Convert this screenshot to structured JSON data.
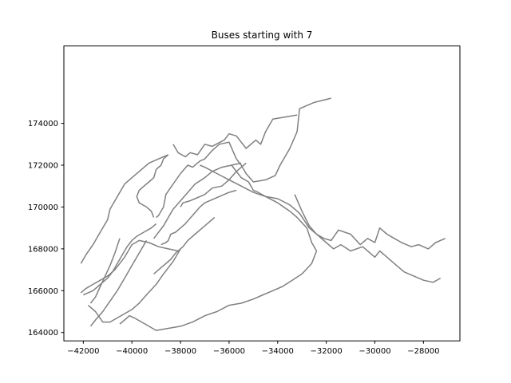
{
  "chart_data": {
    "type": "line",
    "title": "Buses starting with 7",
    "xlabel": "",
    "ylabel": "",
    "xlim": [
      -42800,
      -26500
    ],
    "ylim": [
      163600,
      177700
    ],
    "x_ticks": [
      -42000,
      -40000,
      -38000,
      -36000,
      -34000,
      -32000,
      -30000,
      -28000
    ],
    "y_ticks": [
      164000,
      166000,
      168000,
      170000,
      172000,
      174000
    ],
    "x_tick_labels": [
      "−42000",
      "−40000",
      "−38000",
      "−36000",
      "−34000",
      "−32000",
      "−30000",
      "−28000"
    ],
    "y_tick_labels": [
      "164000",
      "166000",
      "168000",
      "170000",
      "172000",
      "174000"
    ],
    "grid": false,
    "line_color": "#808080",
    "series": [
      {
        "x": [
          -31800,
          -32500,
          -33100,
          -33200,
          -33500,
          -33900,
          -34100,
          -34500,
          -35000,
          -35300,
          -35500,
          -35700,
          -36000,
          -36400,
          -36700,
          -37000,
          -37200,
          -37500,
          -37700,
          -38000,
          -38300,
          -38600,
          -38700,
          -38900,
          -39000
        ],
        "y": [
          175200,
          175000,
          174700,
          173600,
          172800,
          172000,
          171500,
          171300,
          171200,
          171600,
          172000,
          172300,
          173100,
          173000,
          172700,
          172300,
          172200,
          171900,
          172000,
          171600,
          171100,
          170600,
          170000,
          169600,
          169500
        ]
      },
      {
        "x": [
          -33200,
          -34200,
          -34500,
          -34700,
          -34900,
          -35300,
          -35700,
          -36000,
          -36200,
          -36700,
          -37000,
          -37300,
          -37600,
          -37800,
          -38100,
          -38300
        ],
        "y": [
          174400,
          174200,
          173600,
          173000,
          173200,
          172800,
          173400,
          173500,
          173200,
          172900,
          173000,
          172500,
          172600,
          172400,
          172600,
          173000
        ]
      },
      {
        "x": [
          -35300,
          -35700,
          -36000,
          -36300,
          -36700,
          -37000,
          -37400,
          -37600,
          -37900,
          -38000
        ],
        "y": [
          172100,
          171700,
          171300,
          171000,
          170900,
          170600,
          170400,
          170300,
          170200,
          170000
        ]
      },
      {
        "x": [
          -35700,
          -36000,
          -36400,
          -36800,
          -37000,
          -37200,
          -37500,
          -37800,
          -38000,
          -38200,
          -38400,
          -38500,
          -38600,
          -38800
        ],
        "y": [
          170800,
          170700,
          170500,
          170300,
          170200,
          170000,
          169600,
          169200,
          169000,
          168800,
          168700,
          168400,
          168300,
          168200
        ]
      },
      {
        "x": [
          -35500,
          -35900,
          -36300,
          -36700,
          -37000,
          -37400,
          -37700,
          -38000,
          -38300,
          -38500,
          -38700,
          -38900,
          -39100
        ],
        "y": [
          172100,
          172000,
          171900,
          171700,
          171400,
          171100,
          170700,
          170300,
          169900,
          169500,
          169100,
          168800,
          168500
        ]
      },
      {
        "x": [
          -35900,
          -35500,
          -35200,
          -35000,
          -34800,
          -34500,
          -34000,
          -33500,
          -33100,
          -32700,
          -32300,
          -32000,
          -31700,
          -31400,
          -31000,
          -30500,
          -30200,
          -30000,
          -29800,
          -29600,
          -29200,
          -28800,
          -28400,
          -28000,
          -27600,
          -27300
        ],
        "y": [
          172000,
          171400,
          171200,
          170800,
          170700,
          170500,
          170400,
          170100,
          169700,
          169000,
          168600,
          168300,
          168000,
          168200,
          167900,
          168100,
          167800,
          167600,
          167900,
          167700,
          167300,
          166900,
          166700,
          166500,
          166400,
          166600
        ]
      },
      {
        "x": [
          -33300,
          -33000,
          -32700,
          -32400,
          -32100,
          -31800,
          -31500,
          -31000,
          -30600,
          -30300,
          -30000,
          -29800,
          -29500,
          -29200,
          -28900,
          -28500,
          -28200,
          -27800,
          -27500,
          -27100
        ],
        "y": [
          170600,
          169800,
          169100,
          168700,
          168500,
          168400,
          168900,
          168700,
          168200,
          168500,
          168300,
          169000,
          168700,
          168500,
          168300,
          168100,
          168200,
          168000,
          168300,
          168500
        ]
      },
      {
        "x": [
          -37200,
          -37000,
          -36500,
          -36000,
          -35500,
          -35000,
          -34500,
          -34000,
          -33500,
          -33200,
          -32800,
          -32600,
          -32400
        ],
        "y": [
          172000,
          171900,
          171600,
          171300,
          171000,
          170700,
          170500,
          170200,
          169800,
          169500,
          169000,
          168300,
          167900
        ]
      },
      {
        "x": [
          -32400,
          -32600,
          -33000,
          -33400,
          -33800,
          -34200,
          -34600,
          -35000,
          -35500,
          -36000,
          -36500,
          -37000,
          -37500,
          -38000,
          -38500,
          -39000,
          -39300,
          -39600,
          -39900,
          -40100,
          -40300,
          -40500
        ],
        "y": [
          167900,
          167300,
          166800,
          166500,
          166200,
          166000,
          165800,
          165600,
          165400,
          165300,
          165000,
          164800,
          164500,
          164300,
          164200,
          164100,
          164300,
          164500,
          164700,
          164800,
          164600,
          164400
        ]
      },
      {
        "x": [
          -38000,
          -38300,
          -38700,
          -39000,
          -39400,
          -39700,
          -40000,
          -40300,
          -40600,
          -40900,
          -41200,
          -41500,
          -41800
        ],
        "y": [
          168000,
          167400,
          166800,
          166300,
          165800,
          165400,
          165100,
          164900,
          164700,
          164500,
          164500,
          165000,
          165300
        ]
      },
      {
        "x": [
          -38100,
          -38500,
          -38900,
          -39300,
          -39700,
          -40000,
          -40300,
          -40700,
          -41000,
          -41300,
          -41600,
          -41900,
          -42100
        ],
        "y": [
          167900,
          168000,
          168100,
          168300,
          168400,
          168200,
          167600,
          167000,
          166700,
          166500,
          166300,
          166100,
          165900
        ]
      },
      {
        "x": [
          -39400,
          -39700,
          -40000,
          -40300,
          -40600,
          -40900,
          -41200,
          -41500,
          -41700
        ],
        "y": [
          168400,
          167800,
          167200,
          166600,
          166000,
          165500,
          165000,
          164600,
          164300
        ]
      },
      {
        "x": [
          -40500,
          -40700,
          -40900,
          -41100,
          -41300,
          -41500,
          -41700
        ],
        "y": [
          168500,
          167800,
          167200,
          166700,
          166200,
          165700,
          165400
        ]
      },
      {
        "x": [
          -39000,
          -39200,
          -39500,
          -39800,
          -40000,
          -40200,
          -40400,
          -40600,
          -40800,
          -41000,
          -41200,
          -41400,
          -41600,
          -41800,
          -42000
        ],
        "y": [
          169200,
          169000,
          168800,
          168600,
          168400,
          168100,
          167700,
          167300,
          166900,
          166600,
          166400,
          166200,
          166000,
          165900,
          165800
        ]
      },
      {
        "x": [
          -39100,
          -39200,
          -39400,
          -39700,
          -39800,
          -39700,
          -39500,
          -39300,
          -39100,
          -39000,
          -38800,
          -38700,
          -38500
        ],
        "y": [
          169500,
          169800,
          170000,
          170200,
          170500,
          170800,
          171000,
          171200,
          171400,
          171800,
          172000,
          172300,
          172500
        ]
      },
      {
        "x": [
          -38500,
          -38900,
          -39300,
          -39700,
          -40000,
          -40300,
          -40500,
          -40700,
          -40900,
          -41000,
          -41300,
          -41600,
          -41900,
          -42100
        ],
        "y": [
          172500,
          172300,
          172100,
          171700,
          171400,
          171100,
          170700,
          170300,
          169900,
          169400,
          168800,
          168200,
          167700,
          167300
        ]
      },
      {
        "x": [
          -36600,
          -36800,
          -37100,
          -37400,
          -37700,
          -37900,
          -38200,
          -38400,
          -38700,
          -38900,
          -39100
        ],
        "y": [
          169500,
          169300,
          169000,
          168700,
          168400,
          168100,
          167800,
          167500,
          167200,
          167000,
          166800
        ]
      }
    ]
  }
}
